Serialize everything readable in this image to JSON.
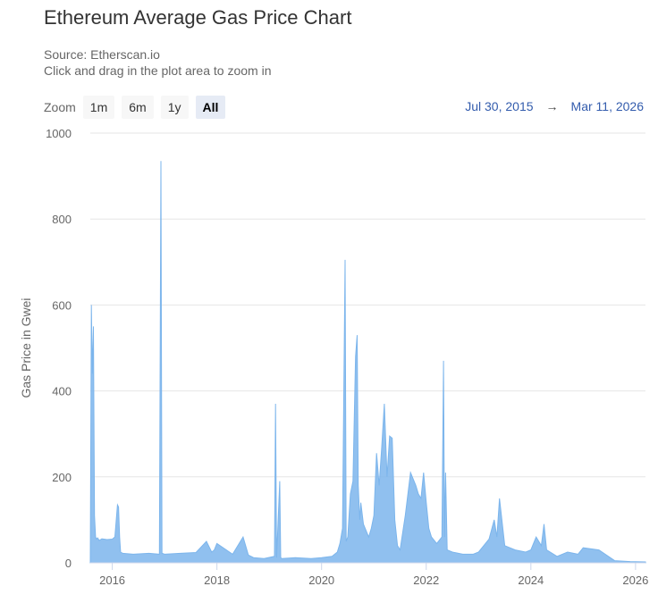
{
  "title": "Ethereum Average Gas Price Chart",
  "subtitle_source": "Source: Etherscan.io",
  "subtitle_hint": "Click and drag in the plot area to zoom in",
  "zoom": {
    "label": "Zoom",
    "buttons": [
      "1m",
      "6m",
      "1y",
      "All"
    ],
    "active": "All"
  },
  "range": {
    "from": "Jul 30, 2015",
    "arrow": "→",
    "to": "Mar 11, 2026"
  },
  "colors": {
    "series": "#7cb5ec",
    "grid": "#e6e6e6",
    "link": "#335cad"
  },
  "chart_data": {
    "type": "area",
    "ylabel": "Gas Price in Gwei",
    "ylim": [
      0,
      1000
    ],
    "yticks": [
      0,
      200,
      400,
      600,
      800,
      1000
    ],
    "xlim": [
      2015.58,
      2026.19
    ],
    "xticks": [
      2016,
      2018,
      2020,
      2022,
      2024,
      2026
    ],
    "xtick_labels": [
      "2016",
      "2018",
      "2020",
      "2022",
      "2024",
      "2026"
    ],
    "series": [
      {
        "x": [
          2015.58,
          2015.6,
          2015.62,
          2015.64,
          2015.66,
          2015.68,
          2015.7,
          2015.72,
          2015.75,
          2015.8,
          2015.9,
          2016.0,
          2016.05,
          2016.1,
          2016.12,
          2016.14,
          2016.16,
          2016.2,
          2016.4,
          2016.7,
          2016.9,
          2016.93,
          2016.95,
          2017.0,
          2017.3,
          2017.6,
          2017.8,
          2017.9,
          2017.95,
          2018.0,
          2018.3,
          2018.5,
          2018.6,
          2018.7,
          2018.9,
          2019.1,
          2019.12,
          2019.14,
          2019.2,
          2019.22,
          2019.24,
          2019.5,
          2019.8,
          2020.0,
          2020.2,
          2020.3,
          2020.35,
          2020.4,
          2020.45,
          2020.47,
          2020.5,
          2020.55,
          2020.6,
          2020.65,
          2020.68,
          2020.7,
          2020.73,
          2020.75,
          2020.8,
          2020.9,
          2020.95,
          2021.0,
          2021.05,
          2021.1,
          2021.15,
          2021.2,
          2021.25,
          2021.3,
          2021.35,
          2021.4,
          2021.45,
          2021.5,
          2021.6,
          2021.7,
          2021.8,
          2021.85,
          2021.9,
          2021.95,
          2022.0,
          2022.05,
          2022.1,
          2022.2,
          2022.3,
          2022.33,
          2022.35,
          2022.37,
          2022.4,
          2022.5,
          2022.7,
          2022.9,
          2023.0,
          2023.2,
          2023.3,
          2023.35,
          2023.4,
          2023.5,
          2023.7,
          2023.9,
          2024.0,
          2024.1,
          2024.2,
          2024.25,
          2024.3,
          2024.5,
          2024.7,
          2024.9,
          2025.0,
          2025.3,
          2025.6,
          2025.9,
          2026.19
        ],
        "y": [
          0,
          600,
          440,
          550,
          110,
          60,
          55,
          58,
          52,
          56,
          54,
          55,
          60,
          135,
          130,
          60,
          25,
          22,
          20,
          22,
          20,
          935,
          22,
          20,
          22,
          24,
          50,
          25,
          30,
          45,
          20,
          60,
          18,
          12,
          10,
          15,
          370,
          12,
          190,
          12,
          10,
          12,
          10,
          12,
          15,
          25,
          45,
          80,
          705,
          50,
          60,
          160,
          190,
          480,
          530,
          180,
          100,
          140,
          90,
          60,
          80,
          110,
          255,
          180,
          270,
          370,
          200,
          295,
          290,
          100,
          40,
          30,
          110,
          210,
          180,
          160,
          150,
          210,
          140,
          80,
          60,
          45,
          60,
          470,
          60,
          210,
          30,
          25,
          20,
          20,
          25,
          55,
          100,
          60,
          150,
          40,
          30,
          25,
          30,
          60,
          40,
          90,
          30,
          15,
          25,
          20,
          35,
          30,
          5,
          3,
          2
        ]
      }
    ]
  }
}
